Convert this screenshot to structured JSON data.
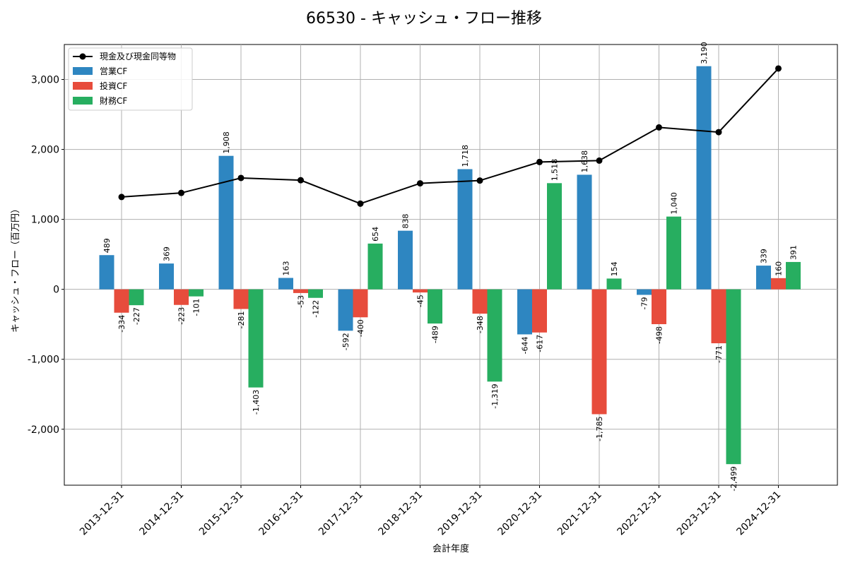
{
  "chart_data": {
    "type": "bar",
    "title": "66530 - キャッシュ・フロー推移",
    "xlabel": "会計年度",
    "ylabel": "キャッシュ・フロー（百万円）",
    "ylim": [
      -2800,
      3500
    ],
    "yticks": [
      -2000,
      -1000,
      0,
      1000,
      2000,
      3000
    ],
    "ytick_labels": [
      "-2,000",
      "-1,000",
      "0",
      "1,000",
      "2,000",
      "3,000"
    ],
    "categories": [
      "2013-12-31",
      "2014-12-31",
      "2015-12-31",
      "2016-12-31",
      "2017-12-31",
      "2018-12-31",
      "2019-12-31",
      "2020-12-31",
      "2021-12-31",
      "2022-12-31",
      "2023-12-31",
      "2024-12-31"
    ],
    "series": [
      {
        "name": "営業CF",
        "color": "#2E86C1",
        "values": [
          489,
          369,
          1908,
          163,
          -592,
          838,
          1718,
          -644,
          1638,
          -79,
          3190,
          339
        ],
        "labels": [
          "489",
          "369",
          "1,908",
          "163",
          "-592",
          "838",
          "1,718",
          "-644",
          "1,638",
          "-79",
          "3,190",
          "339"
        ]
      },
      {
        "name": "投資CF",
        "color": "#E74C3C",
        "values": [
          -334,
          -223,
          -281,
          -53,
          -400,
          -45,
          -348,
          -617,
          -1785,
          -498,
          -771,
          160
        ],
        "labels": [
          "-334",
          "-223",
          "-281",
          "-53",
          "-400",
          "-45",
          "-348",
          "-617",
          "-1,785",
          "-498",
          "-771",
          "160"
        ]
      },
      {
        "name": "財務CF",
        "color": "#27AE60",
        "values": [
          -227,
          -101,
          -1403,
          -122,
          654,
          -489,
          -1319,
          1518,
          154,
          1040,
          -2499,
          391
        ],
        "labels": [
          "-227",
          "-101",
          "-1,403",
          "-122",
          "654",
          "-489",
          "-1,319",
          "1,518",
          "154",
          "1,040",
          "-2,499",
          "391"
        ]
      }
    ],
    "line_series": {
      "name": "現金及び現金同等物",
      "color": "#000000",
      "values": [
        1320,
        1378,
        1592,
        1560,
        1225,
        1515,
        1555,
        1820,
        1840,
        2315,
        2247,
        3157
      ]
    },
    "legend_position": "top-left",
    "grid": true
  }
}
